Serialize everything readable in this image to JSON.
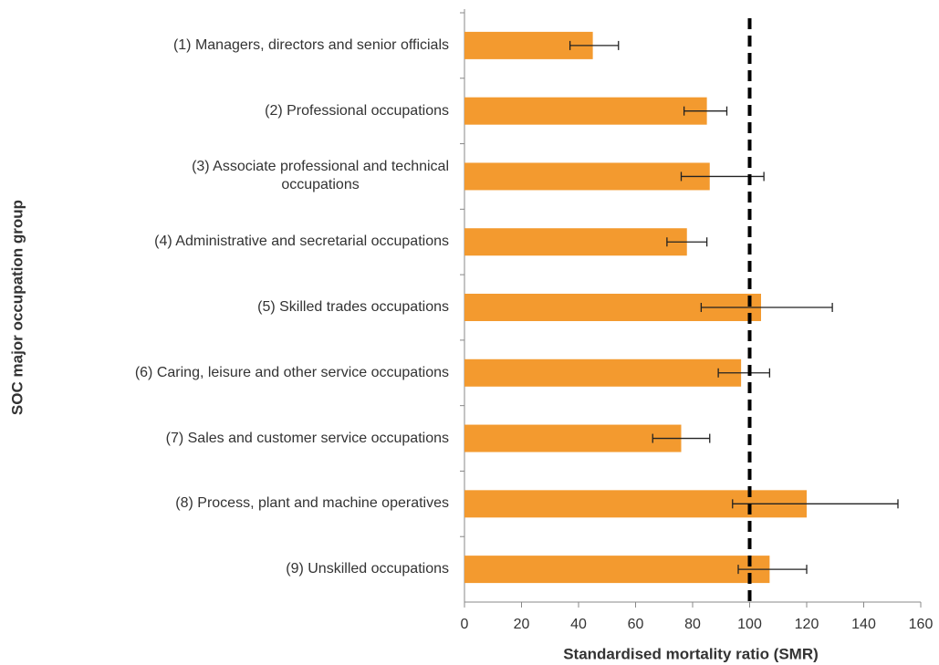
{
  "chart_data": {
    "type": "bar",
    "orientation": "horizontal",
    "xlabel": "Standardised mortality ratio (SMR)",
    "ylabel": "SOC major occupation group",
    "categories": [
      "(1) Managers, directors and senior officials",
      "(2) Professional occupations",
      "(3) Associate professional and technical\noccupations",
      "(4) Administrative and secretarial occupations",
      "(5) Skilled trades occupations",
      "(6) Caring, leisure and other service occupations",
      "(7) Sales and customer service occupations",
      "(8) Process, plant and machine operatives",
      "(9) Unskilled occupations"
    ],
    "values": [
      45,
      85,
      86,
      78,
      104,
      97,
      76,
      120,
      107
    ],
    "lower": [
      37,
      77,
      76,
      71,
      83,
      89,
      66,
      94,
      96
    ],
    "upper": [
      54,
      92,
      105,
      85,
      129,
      107,
      86,
      152,
      120
    ],
    "color": "#f39a2f",
    "reference_line": 100,
    "xlim": [
      0,
      160
    ],
    "xticks": [
      0,
      20,
      40,
      60,
      80,
      100,
      120,
      140,
      160
    ]
  }
}
